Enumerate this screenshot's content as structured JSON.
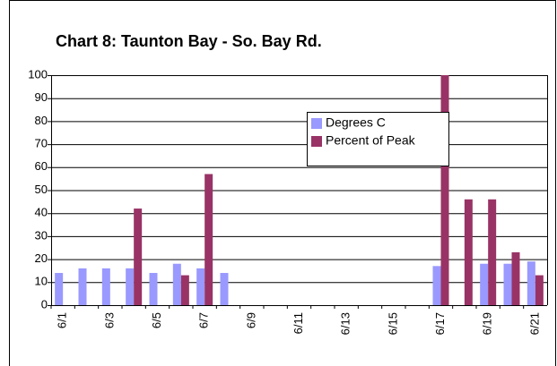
{
  "chart_data": {
    "type": "bar",
    "title": "Chart 8:  Taunton Bay - So. Bay Rd.",
    "categories": [
      "6/1",
      null,
      "6/3",
      null,
      "6/5",
      null,
      "6/7",
      null,
      "6/9",
      null,
      "6/11",
      null,
      "6/13",
      null,
      "6/15",
      null,
      "6/17",
      null,
      "6/19",
      null,
      "6/21"
    ],
    "series": [
      {
        "name": "Degrees C",
        "color": "#9999ff",
        "values": [
          14,
          16,
          16,
          16,
          14,
          18,
          16,
          14,
          null,
          null,
          null,
          null,
          null,
          null,
          null,
          null,
          17,
          null,
          18,
          18,
          19
        ]
      },
      {
        "name": "Percent of Peak",
        "color": "#993366",
        "values": [
          null,
          null,
          null,
          42,
          null,
          13,
          57,
          null,
          null,
          null,
          null,
          null,
          null,
          null,
          null,
          null,
          100,
          46,
          46,
          23,
          13
        ]
      }
    ],
    "ylim": [
      0,
      100
    ],
    "yticks": [
      0,
      10,
      20,
      30,
      40,
      50,
      60,
      70,
      80,
      90,
      100
    ],
    "grid": true
  }
}
